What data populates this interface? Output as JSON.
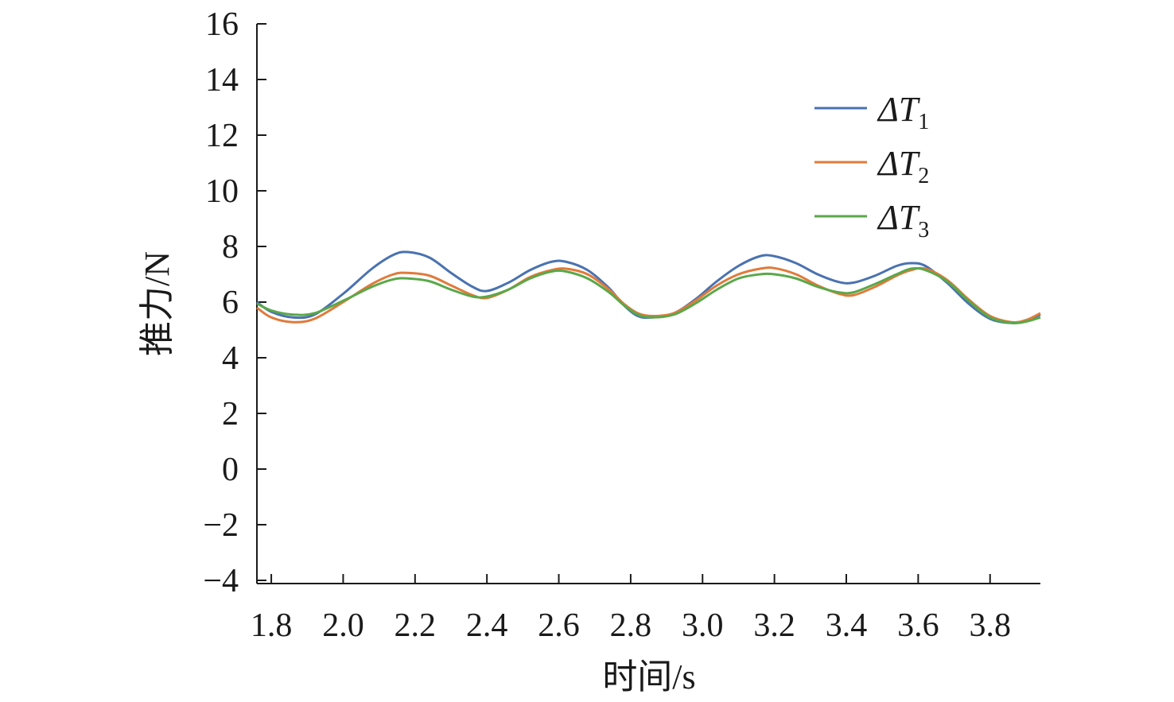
{
  "chart_data": {
    "type": "line",
    "title": "",
    "xlabel": "时间/s",
    "ylabel": "推力/N",
    "xlim": [
      1.76,
      3.94
    ],
    "ylim": [
      -4,
      16
    ],
    "xticks": [
      "1.8",
      "2.0",
      "2.2",
      "2.4",
      "2.6",
      "2.8",
      "3.0",
      "3.2",
      "3.4",
      "3.6",
      "3.8"
    ],
    "yticks": [
      "16",
      "14",
      "12",
      "10",
      "8",
      "6",
      "4",
      "2",
      "0",
      "−2",
      "−4"
    ],
    "grid": false,
    "legend_position": "top-right",
    "series": [
      {
        "name": "ΔT1",
        "legend_main": "ΔT",
        "legend_sub": "1",
        "color": "#4a72b0",
        "points": [
          [
            1.76,
            6.0
          ],
          [
            1.8,
            5.65
          ],
          [
            1.86,
            5.45
          ],
          [
            1.92,
            5.55
          ],
          [
            2.0,
            6.3
          ],
          [
            2.08,
            7.2
          ],
          [
            2.14,
            7.7
          ],
          [
            2.18,
            7.8
          ],
          [
            2.24,
            7.6
          ],
          [
            2.3,
            7.05
          ],
          [
            2.36,
            6.55
          ],
          [
            2.4,
            6.4
          ],
          [
            2.46,
            6.7
          ],
          [
            2.52,
            7.15
          ],
          [
            2.58,
            7.45
          ],
          [
            2.62,
            7.45
          ],
          [
            2.68,
            7.15
          ],
          [
            2.74,
            6.5
          ],
          [
            2.78,
            5.9
          ],
          [
            2.82,
            5.5
          ],
          [
            2.86,
            5.45
          ],
          [
            2.92,
            5.6
          ],
          [
            2.98,
            6.1
          ],
          [
            3.04,
            6.75
          ],
          [
            3.1,
            7.3
          ],
          [
            3.16,
            7.65
          ],
          [
            3.2,
            7.65
          ],
          [
            3.26,
            7.4
          ],
          [
            3.32,
            7.0
          ],
          [
            3.38,
            6.72
          ],
          [
            3.42,
            6.7
          ],
          [
            3.48,
            6.95
          ],
          [
            3.54,
            7.3
          ],
          [
            3.58,
            7.4
          ],
          [
            3.62,
            7.3
          ],
          [
            3.68,
            6.7
          ],
          [
            3.74,
            5.95
          ],
          [
            3.8,
            5.4
          ],
          [
            3.86,
            5.25
          ],
          [
            3.9,
            5.35
          ],
          [
            3.94,
            5.55
          ]
        ]
      },
      {
        "name": "ΔT2",
        "legend_main": "ΔT",
        "legend_sub": "2",
        "color": "#e07a3a",
        "points": [
          [
            1.76,
            5.8
          ],
          [
            1.8,
            5.45
          ],
          [
            1.86,
            5.28
          ],
          [
            1.92,
            5.4
          ],
          [
            2.0,
            6.0
          ],
          [
            2.08,
            6.65
          ],
          [
            2.14,
            7.0
          ],
          [
            2.18,
            7.05
          ],
          [
            2.24,
            6.95
          ],
          [
            2.3,
            6.6
          ],
          [
            2.36,
            6.25
          ],
          [
            2.4,
            6.15
          ],
          [
            2.46,
            6.45
          ],
          [
            2.52,
            6.9
          ],
          [
            2.58,
            7.15
          ],
          [
            2.62,
            7.2
          ],
          [
            2.68,
            7.0
          ],
          [
            2.74,
            6.45
          ],
          [
            2.78,
            5.95
          ],
          [
            2.82,
            5.6
          ],
          [
            2.86,
            5.5
          ],
          [
            2.92,
            5.6
          ],
          [
            2.98,
            6.05
          ],
          [
            3.04,
            6.6
          ],
          [
            3.1,
            7.0
          ],
          [
            3.16,
            7.2
          ],
          [
            3.2,
            7.22
          ],
          [
            3.26,
            7.0
          ],
          [
            3.32,
            6.6
          ],
          [
            3.38,
            6.3
          ],
          [
            3.42,
            6.25
          ],
          [
            3.48,
            6.55
          ],
          [
            3.54,
            6.95
          ],
          [
            3.58,
            7.15
          ],
          [
            3.62,
            7.2
          ],
          [
            3.68,
            6.8
          ],
          [
            3.74,
            6.1
          ],
          [
            3.8,
            5.5
          ],
          [
            3.86,
            5.28
          ],
          [
            3.9,
            5.35
          ],
          [
            3.94,
            5.6
          ]
        ]
      },
      {
        "name": "ΔT3",
        "legend_main": "ΔT",
        "legend_sub": "3",
        "color": "#5aa84a",
        "points": [
          [
            1.76,
            5.95
          ],
          [
            1.8,
            5.7
          ],
          [
            1.86,
            5.55
          ],
          [
            1.92,
            5.6
          ],
          [
            2.0,
            6.05
          ],
          [
            2.08,
            6.55
          ],
          [
            2.14,
            6.82
          ],
          [
            2.18,
            6.85
          ],
          [
            2.24,
            6.75
          ],
          [
            2.3,
            6.45
          ],
          [
            2.36,
            6.2
          ],
          [
            2.4,
            6.2
          ],
          [
            2.46,
            6.45
          ],
          [
            2.52,
            6.85
          ],
          [
            2.58,
            7.1
          ],
          [
            2.62,
            7.1
          ],
          [
            2.68,
            6.85
          ],
          [
            2.74,
            6.35
          ],
          [
            2.78,
            5.9
          ],
          [
            2.82,
            5.55
          ],
          [
            2.86,
            5.45
          ],
          [
            2.92,
            5.55
          ],
          [
            2.98,
            5.95
          ],
          [
            3.04,
            6.45
          ],
          [
            3.1,
            6.85
          ],
          [
            3.16,
            7.0
          ],
          [
            3.2,
            7.0
          ],
          [
            3.26,
            6.85
          ],
          [
            3.32,
            6.55
          ],
          [
            3.38,
            6.35
          ],
          [
            3.42,
            6.35
          ],
          [
            3.48,
            6.65
          ],
          [
            3.54,
            7.0
          ],
          [
            3.58,
            7.2
          ],
          [
            3.62,
            7.15
          ],
          [
            3.68,
            6.75
          ],
          [
            3.74,
            6.05
          ],
          [
            3.8,
            5.45
          ],
          [
            3.86,
            5.25
          ],
          [
            3.9,
            5.3
          ],
          [
            3.94,
            5.45
          ]
        ]
      }
    ]
  }
}
